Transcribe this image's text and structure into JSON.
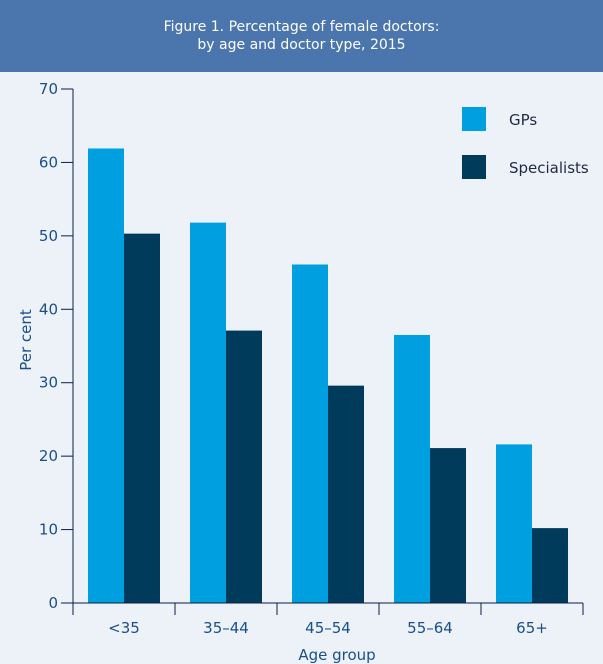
{
  "chart_data": {
    "type": "bar",
    "title_lines": [
      "Figure 1. Percentage of female doctors:",
      "by age and doctor type, 2015"
    ],
    "xlabel": "Age group",
    "ylabel": "Per cent",
    "categories": [
      "<35",
      "35–44",
      "45–54",
      "55–64",
      "65+"
    ],
    "series": [
      {
        "name": "GPs",
        "color": "#009fdf",
        "values": [
          61.9,
          51.8,
          46.1,
          36.5,
          21.6
        ]
      },
      {
        "name": "Specialists",
        "color": "#003b5c",
        "values": [
          50.3,
          37.1,
          29.6,
          21.1,
          10.2
        ]
      }
    ],
    "ylim": [
      0,
      70
    ],
    "yticks": [
      0,
      10,
      20,
      30,
      40,
      50,
      60,
      70
    ],
    "grid": false,
    "legend": "top-right"
  }
}
